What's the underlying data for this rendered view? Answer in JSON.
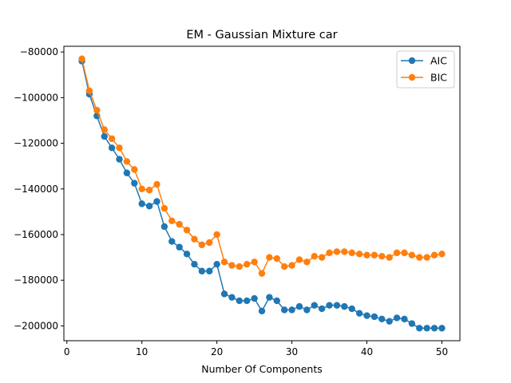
{
  "chart_data": {
    "type": "line",
    "title": "EM - Gaussian Mixture car",
    "xlabel": "Number Of Components",
    "ylabel": "",
    "xlim": [
      -0.4,
      52.4
    ],
    "ylim": [
      -206500,
      -77500
    ],
    "xticks": [
      0,
      10,
      20,
      30,
      40,
      50
    ],
    "yticks": [
      -200000,
      -180000,
      -160000,
      -140000,
      -120000,
      -100000,
      -80000
    ],
    "legend_position": "top-right",
    "grid": false,
    "x": [
      2,
      3,
      4,
      5,
      6,
      7,
      8,
      9,
      10,
      11,
      12,
      13,
      14,
      15,
      16,
      17,
      18,
      19,
      20,
      21,
      22,
      23,
      24,
      25,
      26,
      27,
      28,
      29,
      30,
      31,
      32,
      33,
      34,
      35,
      36,
      37,
      38,
      39,
      40,
      41,
      42,
      43,
      44,
      45,
      46,
      47,
      48,
      49,
      50
    ],
    "series": [
      {
        "name": "AIC",
        "color": "#1f77b4",
        "values": [
          -84000,
          -98500,
          -108000,
          -117000,
          -122000,
          -127000,
          -133000,
          -137500,
          -146500,
          -147500,
          -145500,
          -156500,
          -163000,
          -165500,
          -168500,
          -173000,
          -176000,
          -176000,
          -173000,
          -186000,
          -187500,
          -189000,
          -189000,
          -188000,
          -193500,
          -187500,
          -189000,
          -193000,
          -193000,
          -191500,
          -193000,
          -191000,
          -192500,
          -191000,
          -191000,
          -191500,
          -192500,
          -194500,
          -195500,
          -196000,
          -197000,
          -198000,
          -196500,
          -197000,
          -199000,
          -201000,
          -201000,
          -201000,
          -201000
        ]
      },
      {
        "name": "BIC",
        "color": "#ff7f0e",
        "values": [
          -83000,
          -97000,
          -105500,
          -114000,
          -118000,
          -122000,
          -128000,
          -131500,
          -140000,
          -140500,
          -138000,
          -148500,
          -154000,
          -155500,
          -158000,
          -162000,
          -164500,
          -163500,
          -160000,
          -172000,
          -173500,
          -174000,
          -173000,
          -172000,
          -177000,
          -170000,
          -170500,
          -174000,
          -173500,
          -171000,
          -172000,
          -169500,
          -170000,
          -168000,
          -167500,
          -167500,
          -168000,
          -168500,
          -169000,
          -169000,
          -169500,
          -170000,
          -168000,
          -168000,
          -169000,
          -170000,
          -170000,
          -169000,
          -168500
        ]
      }
    ]
  }
}
